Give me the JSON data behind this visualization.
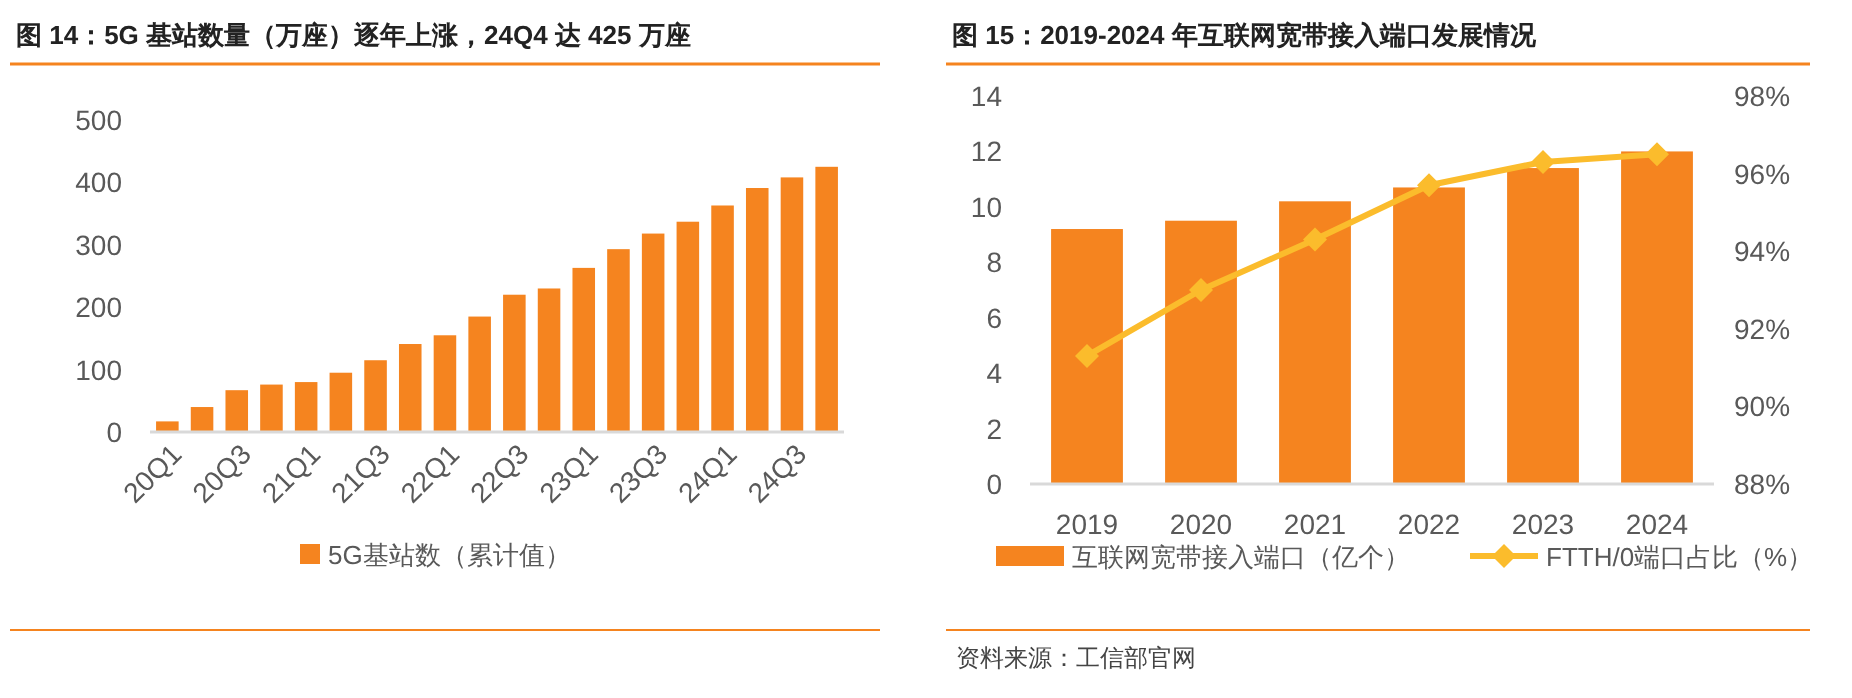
{
  "chart_data": [
    {
      "type": "bar",
      "title": "图 14：5G 基站数量（万座）逐年上涨，24Q4 达 425 万座",
      "categories": [
        "20Q1",
        null,
        "20Q3",
        null,
        "21Q1",
        null,
        "21Q3",
        null,
        "22Q1",
        null,
        "22Q3",
        null,
        "23Q1",
        null,
        "23Q3",
        null,
        "24Q1",
        null,
        "24Q3",
        null
      ],
      "series": [
        {
          "name": "5G基站数（累计值）",
          "color": "#f5841f",
          "values": [
            17,
            40,
            67,
            76,
            80,
            95,
            115,
            141,
            155,
            185,
            220,
            230,
            263,
            293,
            318,
            337,
            363,
            391,
            408,
            425
          ]
        }
      ],
      "ylim": [
        0,
        500
      ],
      "yticks": [
        0,
        100,
        200,
        300,
        400,
        500
      ],
      "legend": "bottom"
    },
    {
      "type": "bar",
      "title": "图 15：2019-2024 年互联网宽带接入端口发展情况",
      "categories": [
        "2019",
        "2020",
        "2021",
        "2022",
        "2023",
        "2024"
      ],
      "series": [
        {
          "name": "互联网宽带接入端口（亿个）",
          "color": "#f5841f",
          "values": [
            9.2,
            9.5,
            10.2,
            10.7,
            11.4,
            12.0
          ]
        },
        {
          "name": "FTTH/0端口占比（%）",
          "color": "#fbbc2c",
          "type": "line",
          "axis": "y2",
          "marker": "diamond",
          "values": [
            91.3,
            93.0,
            94.3,
            95.7,
            96.3,
            96.5
          ]
        }
      ],
      "ylim": [
        0,
        14
      ],
      "yticks": [
        0,
        2,
        4,
        6,
        8,
        10,
        12,
        14
      ],
      "y2lim": [
        88,
        98
      ],
      "y2ticks": [
        {
          "value": 88,
          "label": "88%"
        },
        {
          "value": 90,
          "label": "90%"
        },
        {
          "value": 92,
          "label": "92%"
        },
        {
          "value": 94,
          "label": "94%"
        },
        {
          "value": 96,
          "label": "96%"
        },
        {
          "value": 98,
          "label": "98%"
        }
      ],
      "legend": "bottom",
      "annotations": [
        "资料来源：工信部官网"
      ]
    }
  ]
}
